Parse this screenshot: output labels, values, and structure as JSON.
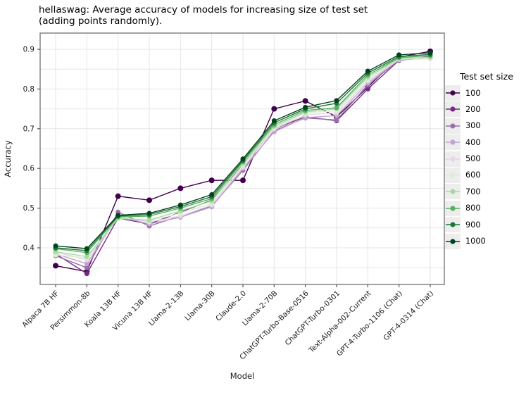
{
  "title": {
    "text": "hellaswag: Average accuracy of models for increasing size of test set\n(adding points randomly)."
  },
  "chart_data": {
    "type": "line",
    "title": "hellaswag: Average accuracy of models for increasing size of test set (adding points randomly).",
    "xlabel": "Model",
    "ylabel": "Accuracy",
    "ylim": [
      0.31,
      0.94
    ],
    "grid": true,
    "yticks_major": [
      0.4,
      0.5,
      0.6,
      0.7,
      0.8,
      0.9
    ],
    "yticks_minor": [
      0.35,
      0.45,
      0.55,
      0.65,
      0.75,
      0.85
    ],
    "categories": [
      "Alpaca 7B HF",
      "Persimmon-8b",
      "Koala 13B HF",
      "Vicuna 13B HF",
      "Llama-2-13B",
      "Llama-30B",
      "Claude-2.0",
      "Llama-2-70B",
      "ChatGPT-Turbo-Base-0516",
      "ChatGPT-Turbo-0301",
      "Text-Alpha-002-Current",
      "GPT-4-Turbo-1106 (Chat)",
      "GPT-4-0314 (Chat)"
    ],
    "legend": {
      "title": "Test set size",
      "position": "right"
    },
    "series": [
      {
        "name": "100",
        "color": "#40004b",
        "values": [
          0.355,
          0.34,
          0.53,
          0.52,
          0.55,
          0.57,
          0.57,
          0.75,
          0.77,
          0.73,
          0.805,
          0.88,
          0.895
        ]
      },
      {
        "name": "200",
        "color": "#762a83",
        "values": [
          0.385,
          0.335,
          0.475,
          0.46,
          0.49,
          0.52,
          0.61,
          0.7,
          0.73,
          0.72,
          0.8,
          0.872,
          0.882
        ]
      },
      {
        "name": "300",
        "color": "#9970ab",
        "values": [
          0.38,
          0.35,
          0.49,
          0.455,
          0.48,
          0.505,
          0.595,
          0.695,
          0.727,
          0.722,
          0.81,
          0.873,
          0.878
        ]
      },
      {
        "name": "400",
        "color": "#c2a5cf",
        "values": [
          0.385,
          0.36,
          0.48,
          0.46,
          0.477,
          0.503,
          0.6,
          0.692,
          0.728,
          0.733,
          0.815,
          0.874,
          0.877
        ]
      },
      {
        "name": "500",
        "color": "#e7d4e8",
        "values": [
          0.39,
          0.37,
          0.478,
          0.465,
          0.48,
          0.508,
          0.603,
          0.7,
          0.735,
          0.74,
          0.82,
          0.875,
          0.876
        ]
      },
      {
        "name": "600",
        "color": "#d9f0d3",
        "values": [
          0.382,
          0.375,
          0.476,
          0.468,
          0.487,
          0.512,
          0.608,
          0.703,
          0.74,
          0.745,
          0.825,
          0.876,
          0.878
        ]
      },
      {
        "name": "700",
        "color": "#a6dba0",
        "values": [
          0.39,
          0.378,
          0.474,
          0.47,
          0.493,
          0.518,
          0.613,
          0.706,
          0.742,
          0.75,
          0.83,
          0.877,
          0.88
        ]
      },
      {
        "name": "800",
        "color": "#5aae61",
        "values": [
          0.398,
          0.388,
          0.478,
          0.48,
          0.5,
          0.524,
          0.617,
          0.71,
          0.746,
          0.753,
          0.835,
          0.879,
          0.884
        ]
      },
      {
        "name": "900",
        "color": "#1b7837",
        "values": [
          0.4,
          0.393,
          0.48,
          0.484,
          0.504,
          0.529,
          0.62,
          0.715,
          0.75,
          0.764,
          0.84,
          0.882,
          0.887
        ]
      },
      {
        "name": "1000",
        "color": "#00441b",
        "values": [
          0.405,
          0.398,
          0.482,
          0.487,
          0.508,
          0.534,
          0.624,
          0.72,
          0.754,
          0.771,
          0.845,
          0.886,
          0.891
        ]
      }
    ],
    "style": {
      "spine_color": "#7a7a7a",
      "grid_color": "#e5e5e5",
      "tick_color": "#555555",
      "text_color": "#1a1a1a",
      "legend_key_bg": "#ededed"
    }
  }
}
